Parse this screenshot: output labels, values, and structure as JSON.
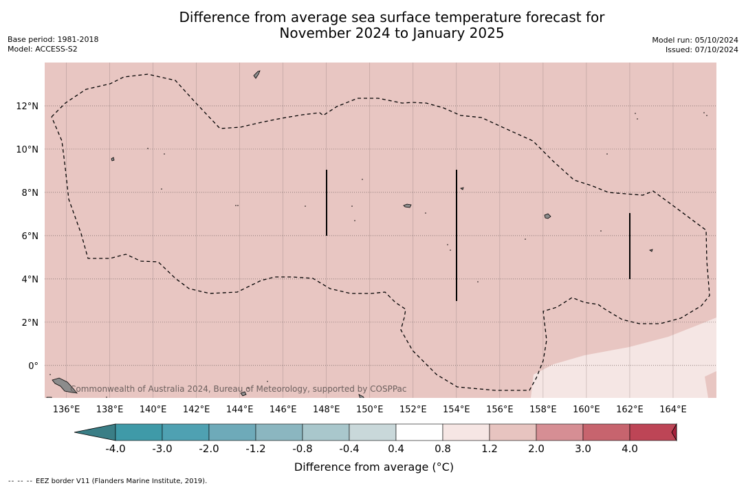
{
  "title": {
    "line1": "Difference from average sea surface temperature forecast for",
    "line2": "November 2024 to January 2025"
  },
  "meta_left": {
    "base_period": "Base period: 1981-2018",
    "model": "Model: ACCESS-S2"
  },
  "meta_right": {
    "model_run": "Model run: 05/10/2024",
    "issued": "Issued: 07/10/2024"
  },
  "map": {
    "lon_range": [
      135,
      166
    ],
    "lat_range": [
      -1.5,
      14
    ],
    "lon_ticks": [
      "136°E",
      "138°E",
      "140°E",
      "142°E",
      "144°E",
      "146°E",
      "148°E",
      "150°E",
      "152°E",
      "154°E",
      "156°E",
      "158°E",
      "160°E",
      "162°E",
      "164°E"
    ],
    "lat_ticks": [
      "12°N",
      "10°N",
      "8°N",
      "6°N",
      "4°N",
      "2°N",
      "0°"
    ],
    "colors": {
      "main_anomaly": "#e8c6c2",
      "light_anomaly": "#f5e6e4",
      "grid": "#8a7a78",
      "land": "#8c8c8c"
    },
    "attribution": "Commonwealth of Australia 2024, Bureau of Meteorology, supported by COSPPac"
  },
  "colorbar": {
    "title": "Difference from average (°C)",
    "tick_labels": [
      "-4.0",
      "-3.0",
      "-2.0",
      "-1.2",
      "-0.8",
      "-0.4",
      "0.4",
      "0.8",
      "1.2",
      "2.0",
      "3.0",
      "4.0"
    ],
    "colors": [
      "#3f9aa8",
      "#4fa1b2",
      "#6eaab9",
      "#8bb6c0",
      "#a9c7cc",
      "#c9d8da",
      "#ffffff",
      "#f6e6e4",
      "#e7c4c0",
      "#d68e94",
      "#c7646e",
      "#bd4556"
    ],
    "under_color": "#3a7e86",
    "over_color": "#a7213c"
  },
  "footer": {
    "eez_dash": "-- -- --",
    "eez_label": "EEZ border V11 (Flanders Marine Institute, 2019)."
  }
}
